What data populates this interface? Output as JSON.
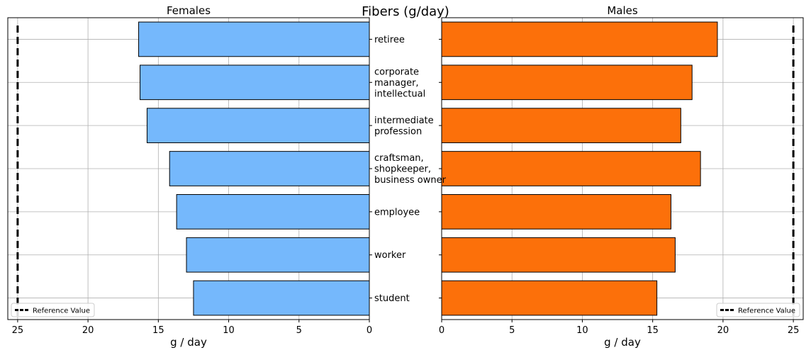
{
  "chart_data": {
    "type": "bar",
    "orientation": "horizontal",
    "title": "Fibers (g/day)",
    "categories": [
      "retiree",
      "corporate\nmanager,\nintellectual",
      "intermediate\nprofession",
      "craftsman,\nshopkeeper,\nbusiness owner",
      "employee",
      "worker",
      "student"
    ],
    "panels": [
      {
        "title": "Females",
        "values": [
          16.4,
          16.3,
          15.8,
          14.2,
          13.7,
          13.0,
          12.5
        ],
        "color": "#75b8fc",
        "xlim": [
          25.7,
          0
        ],
        "xticks": [
          25,
          20,
          15,
          10,
          5,
          0
        ],
        "xtick_labels": [
          "25",
          "20",
          "15",
          "10",
          "5",
          "0"
        ],
        "xlabel": "g / day",
        "reference_value": 25,
        "legend_label": "Reference Value",
        "legend_position": "bottom-left",
        "grid": true
      },
      {
        "title": "Males",
        "values": [
          19.6,
          17.8,
          17.0,
          18.4,
          16.3,
          16.6,
          15.3
        ],
        "color": "#fc700a",
        "xlim": [
          0,
          25.7
        ],
        "xticks": [
          0,
          5,
          10,
          15,
          20,
          25
        ],
        "xtick_labels": [
          "0",
          "5",
          "10",
          "15",
          "20",
          "25"
        ],
        "xlabel": "g / day",
        "reference_value": 25,
        "legend_label": "Reference Value",
        "legend_position": "bottom-right",
        "grid": true
      }
    ]
  }
}
